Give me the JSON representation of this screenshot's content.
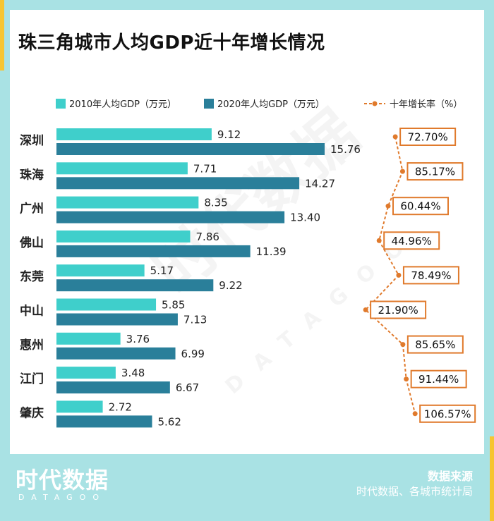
{
  "title": "珠三角城市人均GDP近十年增长情况",
  "legend": {
    "series_2010": "2010年人均GDP（万元）",
    "series_2020": "2020年人均GDP（万元）",
    "growth": "十年增长率（%）"
  },
  "colors": {
    "series_2010": "#3fcfcb",
    "series_2020": "#2a7f9a",
    "growth": "#e07a2c"
  },
  "chart_data": {
    "type": "bar",
    "orientation": "horizontal",
    "title": "珠三角城市人均GDP近十年增长情况",
    "categories": [
      "深圳",
      "珠海",
      "广州",
      "佛山",
      "东莞",
      "中山",
      "惠州",
      "江门",
      "肇庆"
    ],
    "series": [
      {
        "name": "2010年人均GDP（万元）",
        "values": [
          9.12,
          7.71,
          8.35,
          7.86,
          5.17,
          5.85,
          3.76,
          3.48,
          2.72
        ]
      },
      {
        "name": "2020年人均GDP（万元）",
        "values": [
          15.76,
          14.27,
          13.4,
          11.39,
          9.22,
          7.13,
          6.99,
          6.67,
          5.62
        ]
      },
      {
        "name": "十年增长率（%）",
        "type": "line",
        "values": [
          72.7,
          85.17,
          60.44,
          44.96,
          78.49,
          21.9,
          85.65,
          91.44,
          106.57
        ]
      }
    ],
    "value_labels_2010": [
      "9.12",
      "7.71",
      "8.35",
      "7.86",
      "5.17",
      "5.85",
      "3.76",
      "3.48",
      "2.72"
    ],
    "value_labels_2020": [
      "15.76",
      "14.27",
      "13.40",
      "11.39",
      "9.22",
      "7.13",
      "6.99",
      "6.67",
      "5.62"
    ],
    "growth_labels": [
      "72.70%",
      "85.17%",
      "60.44%",
      "44.96%",
      "78.49%",
      "21.90%",
      "85.65%",
      "91.44%",
      "106.57%"
    ],
    "xlim": [
      0,
      16
    ],
    "growth_range": [
      0,
      110
    ]
  },
  "brand": {
    "logo": "时代数据",
    "sub": "DATAGOO"
  },
  "watermark": {
    "main": "时代数据",
    "sub": "DATAGOO"
  },
  "source": {
    "label": "数据来源",
    "text": "时代数据、各城市统计局"
  }
}
